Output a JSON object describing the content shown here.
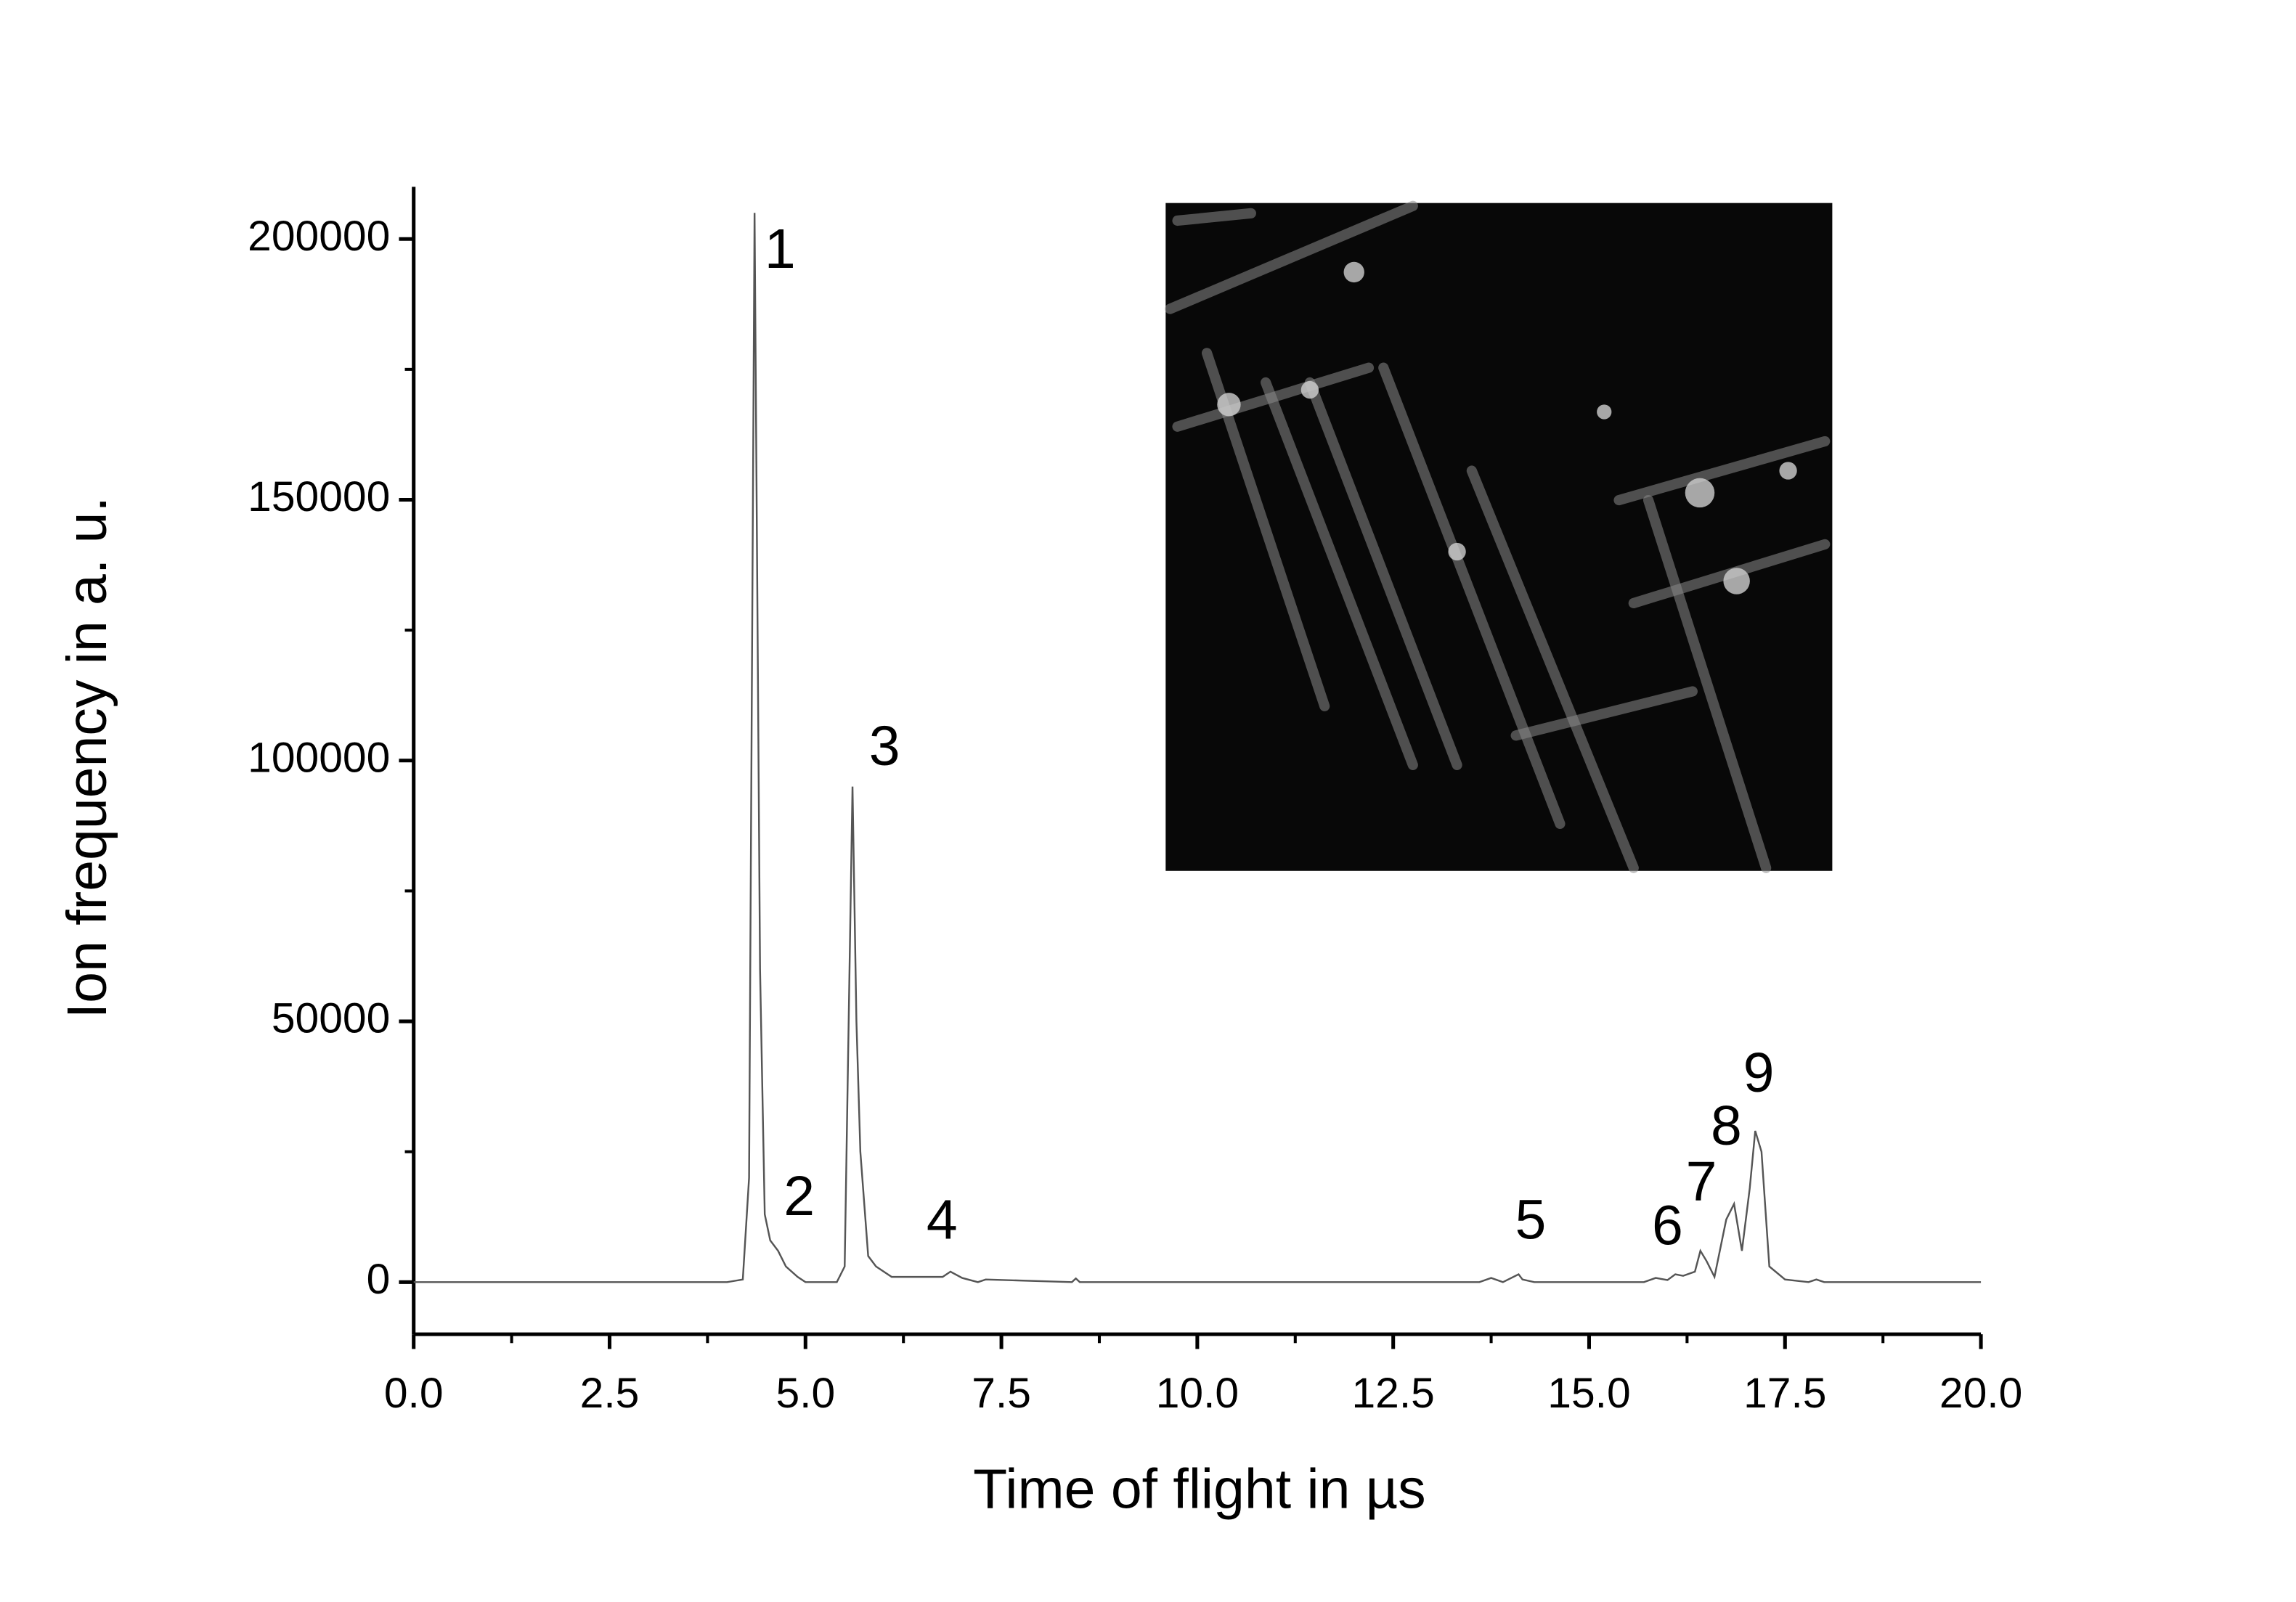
{
  "chart_data": {
    "type": "line",
    "xlabel": "Time of flight in µs",
    "ylabel": "Ion frequency in a. u.",
    "xlim": [
      0,
      20
    ],
    "ylim": [
      -10000,
      210000
    ],
    "xticks": [
      {
        "value": 0,
        "label": "0.0"
      },
      2.5,
      {
        "value": 5,
        "label": "5.0"
      },
      7.5,
      {
        "value": 10,
        "label": "10.0"
      },
      12.5,
      {
        "value": 15,
        "label": "15.0"
      },
      17.5,
      {
        "value": 20,
        "label": "20.0"
      }
    ],
    "yticks": [
      0,
      50000,
      100000,
      150000,
      200000
    ],
    "xticks_minor": [
      1.25,
      3.75,
      6.25,
      8.75,
      11.25,
      13.75,
      16.25,
      18.75
    ],
    "yticks_minor": [
      25000,
      75000,
      125000,
      175000
    ],
    "color": "#555555",
    "x": [
      0,
      4.0,
      4.2,
      4.28,
      4.35,
      4.42,
      4.48,
      4.55,
      4.65,
      4.75,
      4.9,
      5.0,
      5.4,
      5.5,
      5.6,
      5.65,
      5.7,
      5.8,
      5.9,
      6.1,
      6.3,
      6.75,
      6.85,
      7.0,
      7.2,
      7.3,
      8.4,
      8.45,
      8.5,
      13.6,
      13.75,
      13.9,
      14.1,
      14.15,
      14.3,
      15.7,
      15.85,
      16.0,
      16.1,
      16.2,
      16.35,
      16.42,
      16.5,
      16.6,
      16.75,
      16.85,
      16.95,
      17.05,
      17.12,
      17.2,
      17.3,
      17.5,
      17.8,
      17.9,
      18.0,
      20.0
    ],
    "values": [
      0,
      0,
      500,
      20000,
      205000,
      60000,
      13000,
      8000,
      6000,
      3000,
      1000,
      0,
      0,
      3000,
      95000,
      50000,
      25000,
      5000,
      3000,
      1000,
      1000,
      1000,
      2000,
      800,
      0,
      500,
      0,
      700,
      0,
      0,
      800,
      0,
      1500,
      500,
      0,
      0,
      800,
      400,
      1500,
      1200,
      2000,
      6000,
      4000,
      1000,
      12000,
      15000,
      6000,
      18000,
      29000,
      25000,
      3000,
      500,
      0,
      500,
      0,
      0
    ],
    "annotations": [
      "1",
      "2",
      "3",
      "4",
      "5",
      "6",
      "7",
      "8",
      "9"
    ]
  }
}
